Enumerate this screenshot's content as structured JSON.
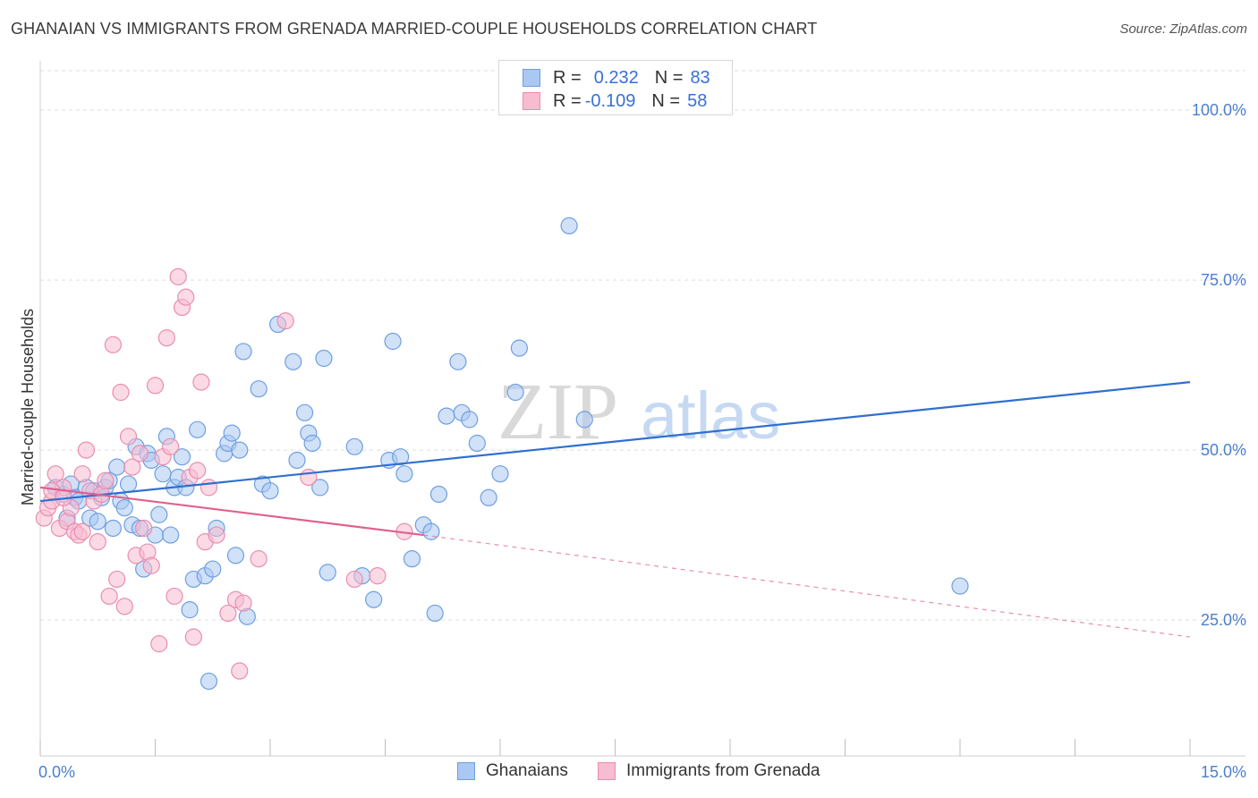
{
  "title": "GHANAIAN VS IMMIGRANTS FROM GRENADA MARRIED-COUPLE HOUSEHOLDS CORRELATION CHART",
  "source": "Source: ZipAtlas.com",
  "watermark": {
    "zip": "ZIP",
    "atlas": "atlas"
  },
  "legend": {
    "rows": [
      {
        "r_label": "R =",
        "r_value": "0.232",
        "n_label": "N =",
        "n_value": "83",
        "color": "#a9c8f3",
        "border": "#6f9fe0"
      },
      {
        "r_label": "R =",
        "r_value": "-0.109",
        "n_label": "N =",
        "n_value": "58",
        "color": "#f7bcd0",
        "border": "#ea8db0"
      }
    ]
  },
  "bottom_legend": [
    "Ghanaians",
    "Immigrants from Grenada"
  ],
  "chart_data": {
    "type": "scatter",
    "title": "GHANAIAN VS IMMIGRANTS FROM GRENADA MARRIED-COUPLE HOUSEHOLDS CORRELATION CHART",
    "xlabel": "",
    "ylabel": "Married-couple Households",
    "xlim": [
      0,
      15
    ],
    "ylim": [
      5,
      107
    ],
    "x_tick_labels": [
      "0.0%",
      "15.0%"
    ],
    "y_ticks": [
      25,
      50,
      75,
      100
    ],
    "y_tick_labels": [
      "25.0%",
      "50.0%",
      "75.0%",
      "100.0%"
    ],
    "grid": true,
    "legend_position": "top-center",
    "series": [
      {
        "name": "Ghanaians",
        "color": "#6f9fe0",
        "fill": "#a9c8f3",
        "trend": {
          "x": [
            0.0,
            15.0
          ],
          "y": [
            42.5,
            60.0
          ],
          "color": "#2f6fd0"
        },
        "points": [
          [
            0.2,
            44.5
          ],
          [
            0.3,
            43.5
          ],
          [
            0.35,
            40.0
          ],
          [
            0.4,
            45.0
          ],
          [
            0.45,
            43.0
          ],
          [
            0.5,
            42.5
          ],
          [
            0.6,
            44.5
          ],
          [
            0.65,
            40.0
          ],
          [
            0.7,
            44.0
          ],
          [
            0.75,
            39.5
          ],
          [
            0.8,
            43.0
          ],
          [
            0.85,
            44.5
          ],
          [
            0.9,
            45.5
          ],
          [
            0.95,
            38.5
          ],
          [
            1.0,
            47.5
          ],
          [
            1.05,
            42.5
          ],
          [
            1.1,
            41.5
          ],
          [
            1.15,
            45.0
          ],
          [
            1.2,
            39.0
          ],
          [
            1.25,
            50.5
          ],
          [
            1.3,
            38.5
          ],
          [
            1.35,
            32.5
          ],
          [
            1.4,
            49.5
          ],
          [
            1.45,
            48.5
          ],
          [
            1.5,
            37.5
          ],
          [
            1.55,
            40.5
          ],
          [
            1.6,
            46.5
          ],
          [
            1.65,
            52.0
          ],
          [
            1.7,
            37.5
          ],
          [
            1.75,
            44.5
          ],
          [
            1.8,
            46.0
          ],
          [
            1.85,
            49.0
          ],
          [
            1.9,
            44.5
          ],
          [
            1.95,
            26.5
          ],
          [
            2.0,
            31.0
          ],
          [
            2.05,
            53.0
          ],
          [
            2.15,
            31.5
          ],
          [
            2.2,
            16.0
          ],
          [
            2.25,
            32.5
          ],
          [
            2.3,
            38.5
          ],
          [
            2.4,
            49.5
          ],
          [
            2.45,
            51.0
          ],
          [
            2.5,
            52.5
          ],
          [
            2.55,
            34.5
          ],
          [
            2.6,
            50.0
          ],
          [
            2.65,
            64.5
          ],
          [
            2.7,
            25.5
          ],
          [
            2.85,
            59.0
          ],
          [
            2.9,
            45.0
          ],
          [
            3.0,
            44.0
          ],
          [
            3.1,
            68.5
          ],
          [
            3.3,
            63.0
          ],
          [
            3.35,
            48.5
          ],
          [
            3.45,
            55.5
          ],
          [
            3.5,
            52.5
          ],
          [
            3.55,
            51.0
          ],
          [
            3.65,
            44.5
          ],
          [
            3.7,
            63.5
          ],
          [
            3.75,
            32.0
          ],
          [
            4.1,
            50.5
          ],
          [
            4.2,
            31.5
          ],
          [
            4.35,
            28.0
          ],
          [
            4.55,
            48.5
          ],
          [
            4.6,
            66.0
          ],
          [
            4.7,
            49.0
          ],
          [
            4.75,
            46.5
          ],
          [
            4.85,
            34.0
          ],
          [
            5.0,
            39.0
          ],
          [
            5.1,
            38.0
          ],
          [
            5.15,
            26.0
          ],
          [
            5.2,
            43.5
          ],
          [
            5.3,
            55.0
          ],
          [
            5.45,
            63.0
          ],
          [
            5.5,
            55.5
          ],
          [
            5.6,
            54.5
          ],
          [
            5.7,
            51.0
          ],
          [
            5.85,
            43.0
          ],
          [
            6.0,
            46.5
          ],
          [
            6.2,
            58.5
          ],
          [
            6.25,
            65.0
          ],
          [
            6.9,
            83.0
          ],
          [
            7.1,
            54.5
          ],
          [
            12.0,
            30.0
          ]
        ]
      },
      {
        "name": "Immigrants from Grenada",
        "color": "#ea8db0",
        "fill": "#f7bcd0",
        "trend": {
          "x": [
            0.0,
            5.0
          ],
          "y": [
            44.5,
            37.5
          ],
          "color": "#e0608e"
        },
        "trend_dashed": {
          "x": [
            5.0,
            15.0
          ],
          "y": [
            37.5,
            22.5
          ]
        },
        "points": [
          [
            0.05,
            40.0
          ],
          [
            0.1,
            41.5
          ],
          [
            0.15,
            42.5
          ],
          [
            0.2,
            46.5
          ],
          [
            0.25,
            38.5
          ],
          [
            0.3,
            44.5
          ],
          [
            0.35,
            39.5
          ],
          [
            0.4,
            41.5
          ],
          [
            0.45,
            38.0
          ],
          [
            0.5,
            37.5
          ],
          [
            0.55,
            46.5
          ],
          [
            0.6,
            50.0
          ],
          [
            0.65,
            44.0
          ],
          [
            0.7,
            42.5
          ],
          [
            0.75,
            36.5
          ],
          [
            0.8,
            43.5
          ],
          [
            0.85,
            45.5
          ],
          [
            0.9,
            28.5
          ],
          [
            0.95,
            65.5
          ],
          [
            1.0,
            31.0
          ],
          [
            1.05,
            58.5
          ],
          [
            1.1,
            27.0
          ],
          [
            1.15,
            52.0
          ],
          [
            1.2,
            47.5
          ],
          [
            1.25,
            34.5
          ],
          [
            1.3,
            49.5
          ],
          [
            1.35,
            38.5
          ],
          [
            1.4,
            35.0
          ],
          [
            1.45,
            33.0
          ],
          [
            1.5,
            59.5
          ],
          [
            1.55,
            21.5
          ],
          [
            1.6,
            49.0
          ],
          [
            1.65,
            66.5
          ],
          [
            1.7,
            50.5
          ],
          [
            1.75,
            28.5
          ],
          [
            1.8,
            75.5
          ],
          [
            1.85,
            71.0
          ],
          [
            1.9,
            72.5
          ],
          [
            1.95,
            46.0
          ],
          [
            2.0,
            22.5
          ],
          [
            2.05,
            47.0
          ],
          [
            2.1,
            60.0
          ],
          [
            2.15,
            36.5
          ],
          [
            2.2,
            44.5
          ],
          [
            2.3,
            37.5
          ],
          [
            2.45,
            26.0
          ],
          [
            2.55,
            28.0
          ],
          [
            2.6,
            17.5
          ],
          [
            2.65,
            27.5
          ],
          [
            2.85,
            34.0
          ],
          [
            3.2,
            69.0
          ],
          [
            3.5,
            46.0
          ],
          [
            4.1,
            31.0
          ],
          [
            4.4,
            31.5
          ],
          [
            4.75,
            38.0
          ],
          [
            0.15,
            44.0
          ],
          [
            0.3,
            43.0
          ],
          [
            0.55,
            38.0
          ]
        ]
      }
    ]
  }
}
